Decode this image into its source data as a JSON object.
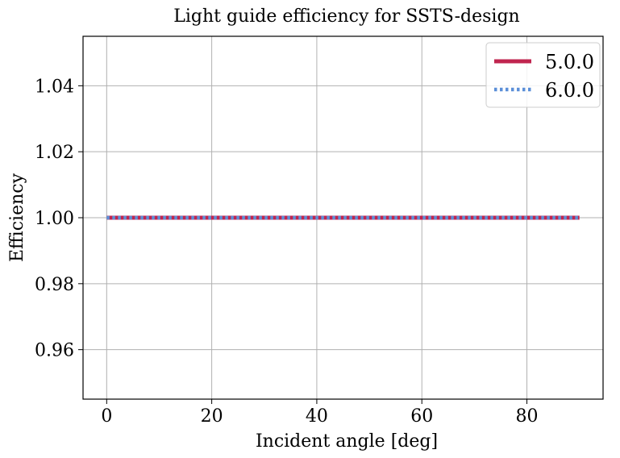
{
  "chart_data": {
    "type": "line",
    "title": "Light guide efficiency for SSTS-design",
    "xlabel": "Incident angle [deg]",
    "ylabel": "Efficiency",
    "xlim": [
      -4.5,
      94.5
    ],
    "ylim": [
      0.945,
      1.055
    ],
    "xticks": [
      0,
      20,
      40,
      60,
      80
    ],
    "yticks": [
      0.96,
      0.98,
      1.0,
      1.02,
      1.04
    ],
    "xtick_labels": [
      "0",
      "20",
      "40",
      "60",
      "80"
    ],
    "ytick_labels": [
      "0.96",
      "0.98",
      "1.00",
      "1.02",
      "1.04"
    ],
    "grid": true,
    "legend_position": "top-right",
    "x": [
      0,
      90
    ],
    "series": [
      {
        "name": "5.0.0",
        "values": [
          1.0,
          1.0
        ],
        "color": "#c0254f",
        "style": "solid"
      },
      {
        "name": "6.0.0",
        "values": [
          1.0,
          1.0
        ],
        "color": "#5b8fd8",
        "style": "dotted"
      }
    ]
  }
}
